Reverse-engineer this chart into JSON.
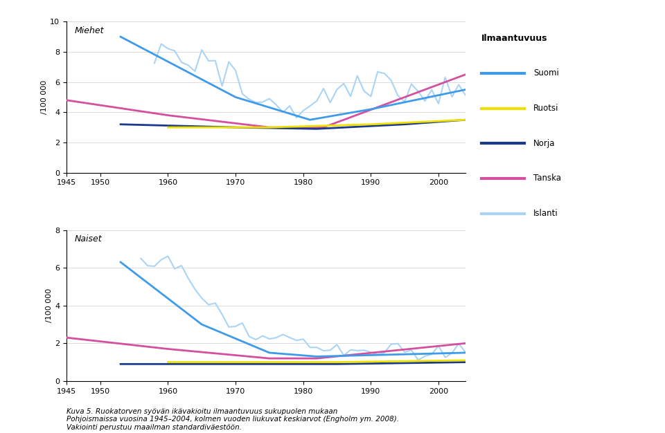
{
  "title_men": "Miehet",
  "title_women": "Naiset",
  "ylabel": "/100 000",
  "ylim_men": [
    0,
    10
  ],
  "ylim_women": [
    0,
    8
  ],
  "yticks_men": [
    0,
    2,
    4,
    6,
    8,
    10
  ],
  "yticks_women": [
    0,
    2,
    4,
    6,
    8
  ],
  "xlim": [
    1945,
    2004
  ],
  "xticks": [
    1945,
    1950,
    1960,
    1970,
    1980,
    1990,
    2000
  ],
  "caption": "Kuva 5. Ruokatorven syövän ikävakioitu ilmaantuvuus sukupuolen mukaan\nPohjoismaissa vuosina 1945–2004, kolmen vuoden liukuvat keskiarvot (Engholm ym. 2008).\nVakiointi perustuu maailman standardiväestöön.",
  "legend_title": "Ilmaantuvuus",
  "legend_entries": [
    "Suomi",
    "Ruotsi",
    "Norja",
    "Tanska",
    "Islanti"
  ],
  "colors": {
    "Suomi": "#3d9be9",
    "Ruotsi": "#f0e000",
    "Norja": "#1a3a8c",
    "Tanska": "#d44f9e",
    "Islanti": "#aad4f5"
  }
}
